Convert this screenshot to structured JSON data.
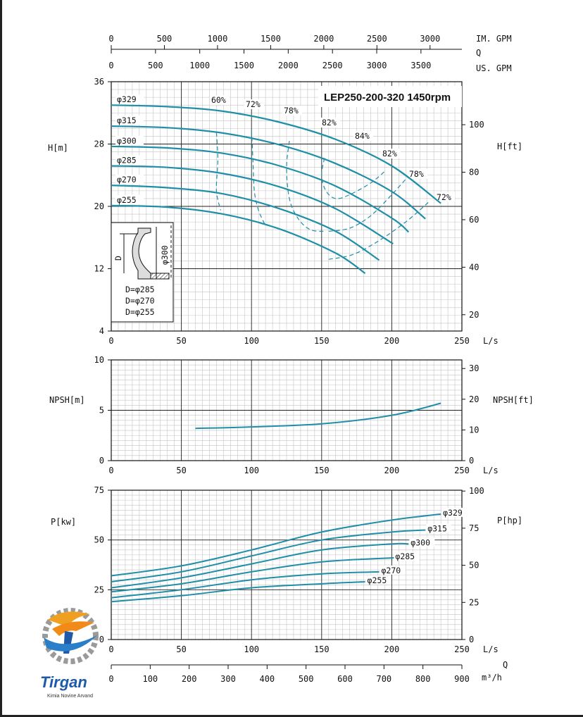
{
  "chart_data": [
    {
      "type": "line",
      "title": "LEP250-200-320 1450rpm",
      "xlabel": "L/s",
      "ylabel": "H[m]",
      "y2label": "H[ft]",
      "xlim": [
        0,
        250
      ],
      "ylim": [
        4,
        36
      ],
      "x_ticks": [
        0,
        50,
        100,
        150,
        200,
        250
      ],
      "y_ticks": [
        4,
        12,
        20,
        28,
        36
      ],
      "y2_ticks": [
        20,
        40,
        60,
        80,
        100
      ],
      "grid": true,
      "top_axes": [
        {
          "label": "IM. GPM",
          "ticks": [
            "0",
            "500",
            "1000",
            "1500",
            "2000",
            "2500",
            "3000"
          ]
        },
        {
          "label": "Q",
          "ticks": []
        },
        {
          "label": "US. GPM",
          "ticks": [
            "0",
            "500",
            "1000",
            "1500",
            "2000",
            "2500",
            "3000",
            "3500"
          ]
        }
      ],
      "series": [
        {
          "name": "φ329",
          "x": [
            0,
            40,
            80,
            120,
            160,
            200,
            235
          ],
          "values": [
            33.0,
            32.8,
            32.2,
            30.8,
            28.6,
            25.2,
            20.4
          ]
        },
        {
          "name": "φ315",
          "x": [
            0,
            40,
            80,
            120,
            160,
            200,
            224
          ],
          "values": [
            30.3,
            30.1,
            29.4,
            27.9,
            25.5,
            21.9,
            18.4
          ]
        },
        {
          "name": "φ300",
          "x": [
            0,
            40,
            80,
            120,
            160,
            200,
            212
          ],
          "values": [
            27.7,
            27.5,
            26.8,
            25.2,
            22.6,
            18.5,
            16.7
          ]
        },
        {
          "name": "φ285",
          "x": [
            0,
            40,
            80,
            120,
            160,
            201
          ],
          "values": [
            25.2,
            25.0,
            24.2,
            22.5,
            19.7,
            15.2
          ]
        },
        {
          "name": "φ270",
          "x": [
            0,
            40,
            80,
            120,
            160,
            191
          ],
          "values": [
            22.7,
            22.4,
            21.6,
            19.7,
            16.8,
            13.1
          ]
        },
        {
          "name": "φ255",
          "x": [
            0,
            40,
            80,
            120,
            160,
            181
          ],
          "values": [
            20.1,
            19.9,
            19.0,
            17.1,
            14.0,
            11.4
          ]
        }
      ],
      "efficiency_labels": [
        "60%",
        "72%",
        "78%",
        "82%",
        "84%",
        "82%",
        "78%",
        "72%"
      ],
      "inset": {
        "dimension_label": "φ300",
        "d_label": "D",
        "lines": [
          "D=φ285",
          "D=φ270",
          "D=φ255"
        ]
      }
    },
    {
      "type": "line",
      "xlabel": "L/s",
      "ylabel": "NPSH[m]",
      "y2label": "NPSH[ft]",
      "xlim": [
        0,
        250
      ],
      "ylim": [
        0,
        10
      ],
      "x_ticks": [
        0,
        50,
        100,
        150,
        200,
        250
      ],
      "y_ticks": [
        0,
        5,
        10
      ],
      "y2_ticks": [
        0,
        10,
        20,
        30
      ],
      "grid": true,
      "series": [
        {
          "x": [
            60,
            100,
            150,
            200,
            235
          ],
          "values": [
            3.2,
            3.35,
            3.65,
            4.5,
            5.7
          ]
        }
      ]
    },
    {
      "type": "line",
      "xlabel": "L/s",
      "ylabel": "P[kw]",
      "y2label": "P[hp]",
      "xlim": [
        0,
        250
      ],
      "ylim": [
        0,
        75
      ],
      "x_ticks": [
        0,
        50,
        100,
        150,
        200,
        250
      ],
      "y_ticks": [
        0,
        25,
        50,
        75
      ],
      "y2_ticks": [
        0,
        25,
        50,
        75,
        100
      ],
      "grid": true,
      "bottom_axis": {
        "label": "Q",
        "unit": "m³/h",
        "ticks": [
          "0",
          "100",
          "200",
          "300",
          "400",
          "500",
          "600",
          "700",
          "800",
          "900"
        ]
      },
      "series": [
        {
          "name": "φ329",
          "x": [
            0,
            50,
            100,
            150,
            200,
            235
          ],
          "values": [
            32,
            37,
            45,
            54,
            60,
            63
          ]
        },
        {
          "name": "φ315",
          "x": [
            0,
            50,
            100,
            150,
            200,
            224
          ],
          "values": [
            29,
            34,
            42,
            50,
            54,
            55
          ]
        },
        {
          "name": "φ300",
          "x": [
            0,
            50,
            100,
            150,
            200,
            212
          ],
          "values": [
            26,
            31,
            38,
            45,
            48,
            48
          ]
        },
        {
          "name": "φ285",
          "x": [
            0,
            50,
            100,
            150,
            200,
            201
          ],
          "values": [
            24,
            28,
            34,
            39,
            41,
            41
          ]
        },
        {
          "name": "φ270",
          "x": [
            0,
            50,
            100,
            150,
            191
          ],
          "values": [
            21,
            25,
            30,
            33,
            34
          ]
        },
        {
          "name": "φ255",
          "x": [
            0,
            50,
            100,
            150,
            181
          ],
          "values": [
            19,
            22,
            26,
            28,
            29
          ]
        }
      ]
    }
  ],
  "logo": {
    "name": "Tirgan",
    "tagline": "Kimia Novine Arvand"
  },
  "colors": {
    "curve": "#1f8fa8",
    "grid": "#c4c4c4",
    "grid_major": "#222222",
    "axis": "#111111"
  }
}
